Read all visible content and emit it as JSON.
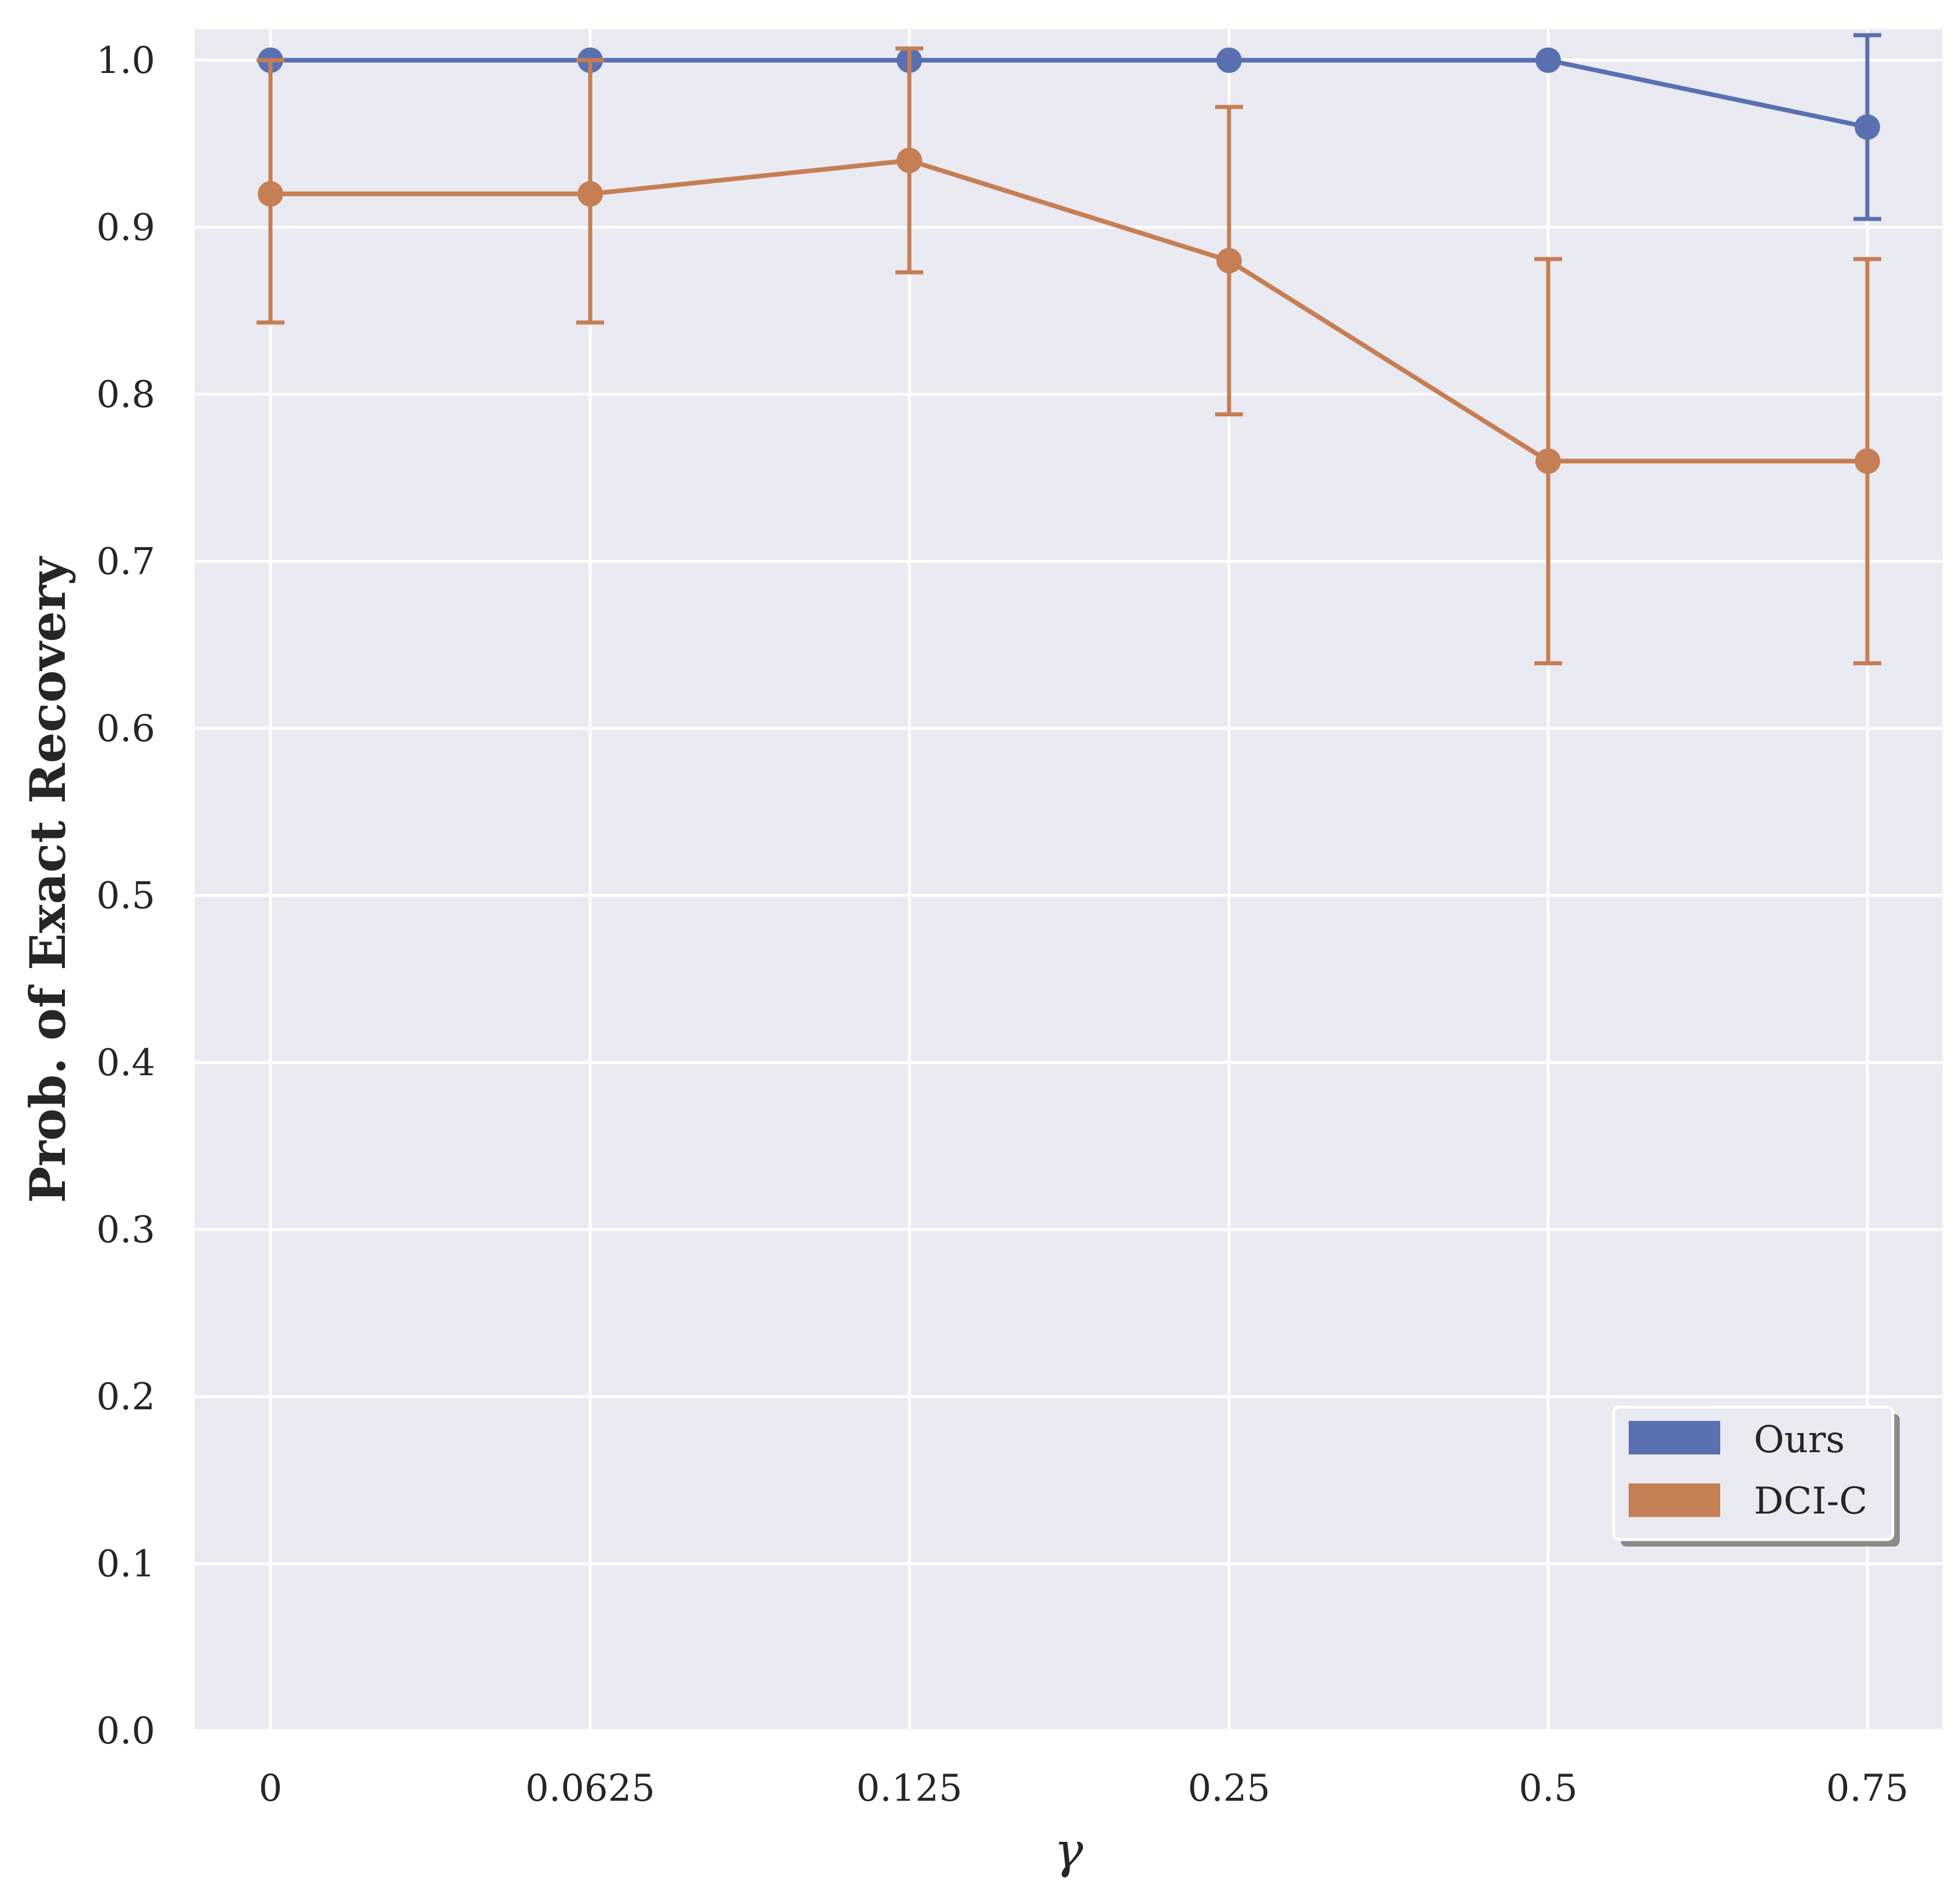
{
  "chart_data": {
    "type": "line",
    "title": "",
    "xlabel": "γ",
    "ylabel": "Prob. of Exact Recovery",
    "categories": [
      "0",
      "0.0625",
      "0.125",
      "0.25",
      "0.5",
      "0.75"
    ],
    "ylim": [
      0.0,
      1.0
    ],
    "yticks": [
      "0.0",
      "0.1",
      "0.2",
      "0.3",
      "0.4",
      "0.5",
      "0.6",
      "0.7",
      "0.8",
      "0.9",
      "1.0"
    ],
    "grid": true,
    "legend_position": "lower-right",
    "series": [
      {
        "name": "Ours",
        "color": "#5a70b0",
        "values": [
          1.0,
          1.0,
          1.0,
          1.0,
          1.0,
          0.96
        ],
        "error_low": [
          1.0,
          1.0,
          1.0,
          1.0,
          1.0,
          0.905
        ],
        "error_high": [
          1.0,
          1.0,
          1.0,
          1.0,
          1.0,
          1.015
        ]
      },
      {
        "name": "DCI-C",
        "color": "#c67e54",
        "values": [
          0.92,
          0.92,
          0.94,
          0.88,
          0.76,
          0.76
        ],
        "error_low": [
          0.843,
          0.843,
          0.873,
          0.788,
          0.639,
          0.639
        ],
        "error_high": [
          1.0,
          1.0,
          1.007,
          0.972,
          0.881,
          0.881
        ]
      }
    ]
  }
}
